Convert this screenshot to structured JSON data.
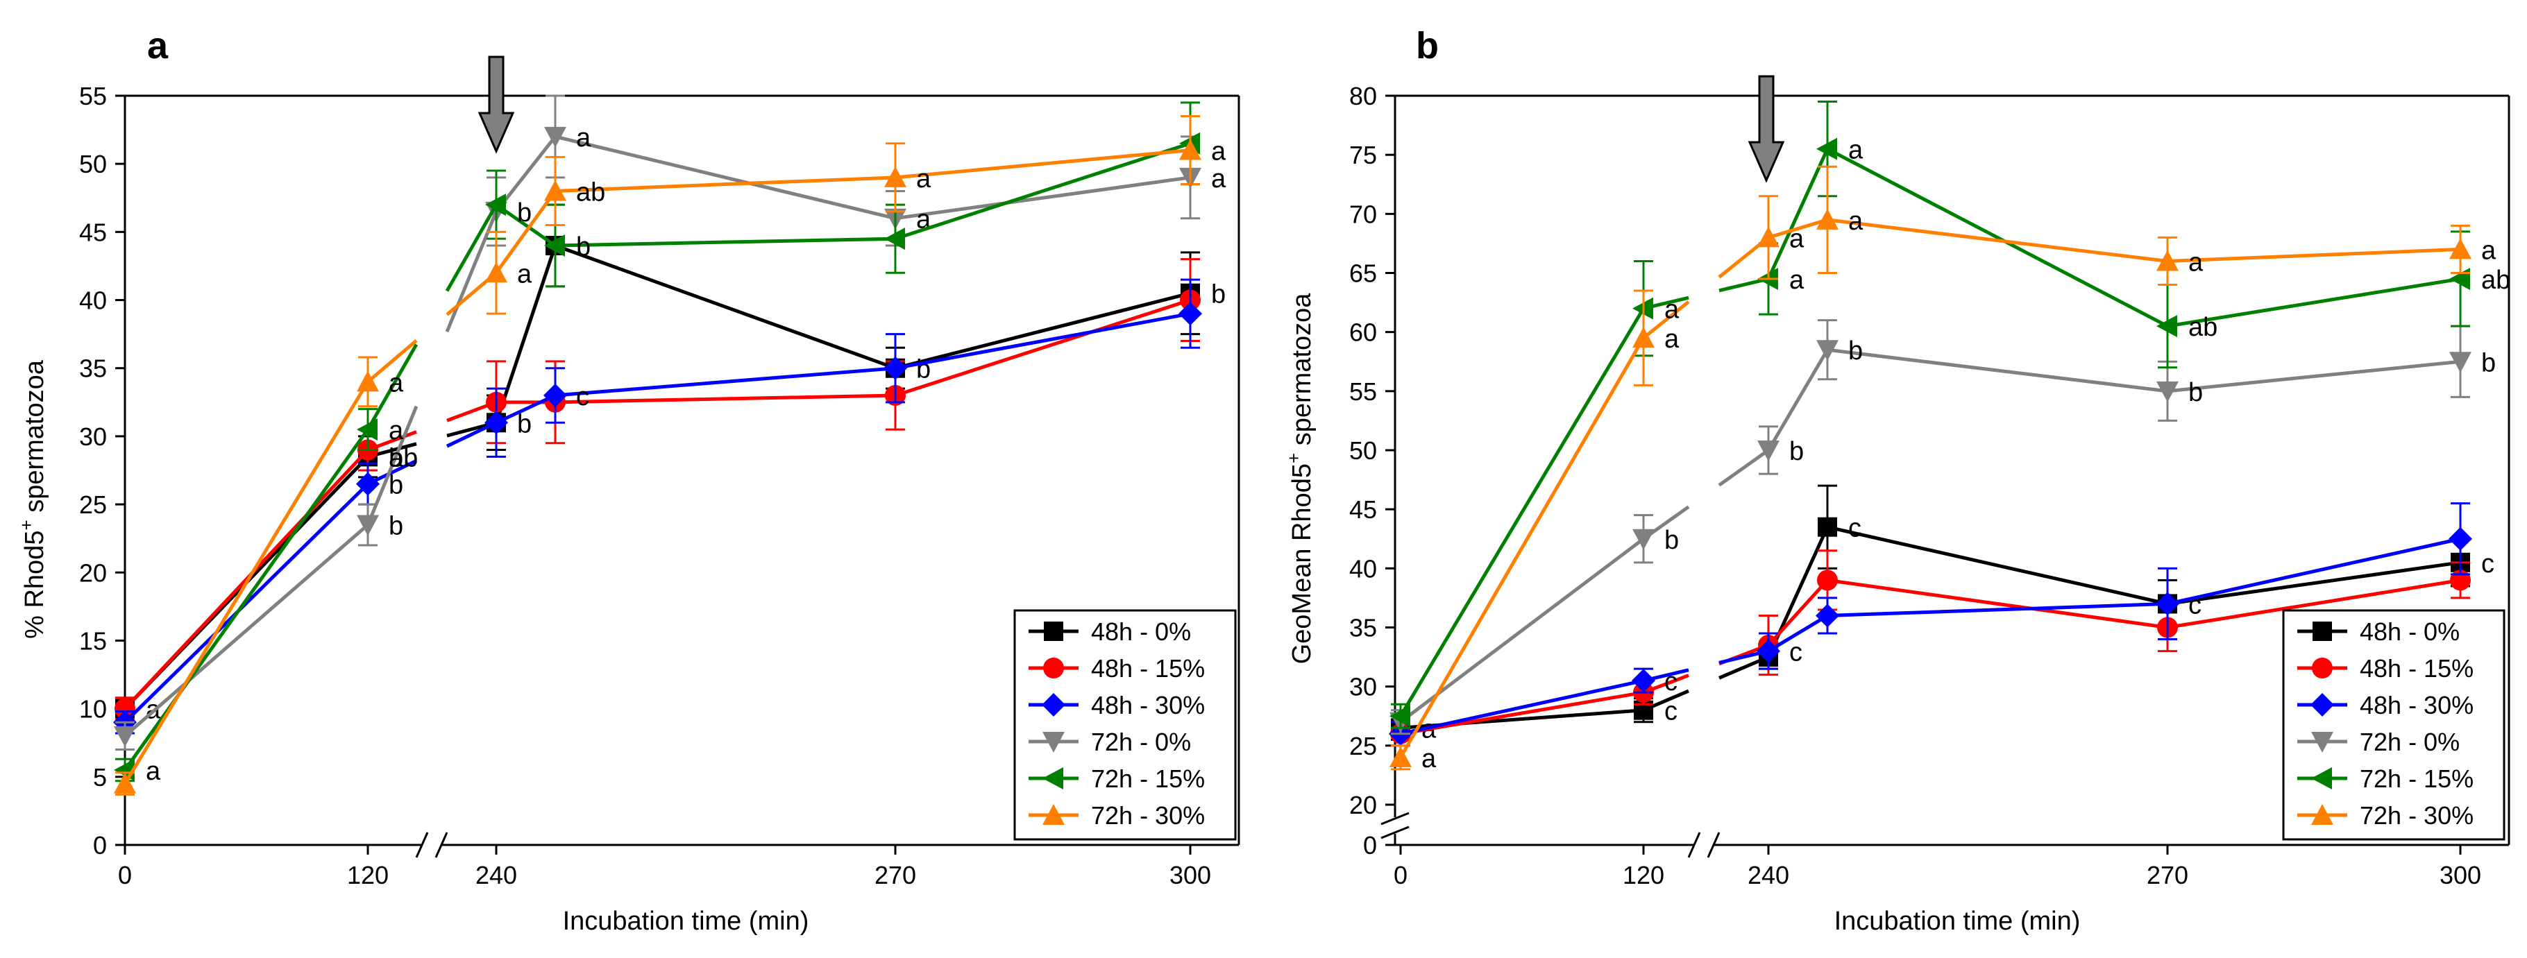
{
  "chart_data": [
    {
      "panel_label": "a",
      "type": "line",
      "title": "",
      "xlabel": "Incubation time (min)",
      "ylabel_parts": [
        "% Rhod5",
        "+",
        " spermatozoa"
      ],
      "ylim": [
        0,
        55
      ],
      "yticks": [
        "0",
        "5",
        "10",
        "15",
        "20",
        "25",
        "30",
        "35",
        "40",
        "45",
        "50",
        "55"
      ],
      "xticks": [
        "0",
        "120",
        "240",
        "270",
        "300"
      ],
      "x_axis_break": "between 120 and 240",
      "annotation": "arrow at x = 240",
      "legend_position": "bottom-right",
      "series": [
        {
          "name": "48h - 0%",
          "color": "#000000",
          "marker": "square",
          "values": [
            10.0,
            28.5,
            31.0,
            44.0,
            35.0,
            40.5
          ],
          "errors": [
            0.8,
            1.5,
            2.0,
            3.0,
            1.5,
            3.0
          ],
          "labels": [
            "a",
            "b",
            "b",
            "",
            "b",
            "b"
          ]
        },
        {
          "name": "48h - 15%",
          "color": "#ff0000",
          "marker": "circle",
          "values": [
            10.0,
            29.0,
            32.5,
            32.5,
            33.0,
            40.0
          ],
          "errors": [
            0.8,
            1.5,
            3.0,
            3.0,
            2.5,
            3.0
          ],
          "labels": [
            "",
            "",
            "",
            "",
            "",
            ""
          ]
        },
        {
          "name": "48h - 30%",
          "color": "#0000ff",
          "marker": "diamond",
          "values": [
            9.0,
            26.5,
            31.0,
            33.0,
            35.0,
            39.0
          ],
          "errors": [
            0.8,
            1.5,
            2.5,
            2.0,
            2.5,
            2.5
          ],
          "labels": [
            "",
            "b",
            "",
            "c",
            "",
            ""
          ]
        },
        {
          "name": "72h - 0%",
          "color": "#808080",
          "marker": "triangle-down",
          "values": [
            8.0,
            23.5,
            46.5,
            52.0,
            46.0,
            49.0
          ],
          "errors": [
            1.0,
            1.5,
            2.5,
            3.0,
            2.0,
            3.0
          ],
          "labels": [
            "",
            "b",
            "",
            "a",
            "a",
            "a"
          ]
        },
        {
          "name": "72h - 15%",
          "color": "#008000",
          "marker": "triangle-left",
          "values": [
            5.5,
            30.5,
            47.0,
            44.0,
            44.5,
            51.5
          ],
          "errors": [
            0.8,
            1.5,
            2.5,
            3.0,
            2.5,
            3.0
          ],
          "labels": [
            "a",
            "a",
            "",
            "b",
            "",
            ""
          ]
        },
        {
          "name": "72h - 30%",
          "color": "#ff8000",
          "marker": "triangle-up",
          "values": [
            4.5,
            34.0,
            42.0,
            48.0,
            49.0,
            51.0
          ],
          "errors": [
            0.8,
            1.8,
            3.0,
            2.5,
            2.5,
            2.5
          ],
          "labels": [
            "",
            "a",
            "a",
            "ab",
            "a",
            "a"
          ]
        }
      ],
      "extra_labels": [
        {
          "text": "ab",
          "near_series": 0,
          "point": 1
        },
        {
          "text": "b",
          "near_series": 3,
          "point": 2
        }
      ]
    },
    {
      "panel_label": "b",
      "type": "line",
      "title": "",
      "xlabel": "Incubation time (min)",
      "ylabel_parts": [
        "GeoMean Rhod5",
        "+",
        " spermatozoa"
      ],
      "ylim": [
        20,
        80
      ],
      "yticks": [
        "0",
        "20",
        "25",
        "30",
        "35",
        "40",
        "45",
        "50",
        "55",
        "60",
        "65",
        "70",
        "75",
        "80"
      ],
      "xticks": [
        "0",
        "120",
        "240",
        "270",
        "300"
      ],
      "y_axis_break": "between 0 and 20",
      "x_axis_break": "between 120 and 240",
      "annotation": "arrow at x = 240",
      "legend_position": "bottom-right",
      "series": [
        {
          "name": "48h - 0%",
          "color": "#000000",
          "marker": "square",
          "values": [
            26.5,
            28.0,
            32.5,
            43.5,
            37.0,
            40.5
          ],
          "errors": [
            1.0,
            1.0,
            1.0,
            3.5,
            2.0,
            2.0
          ],
          "labels": [
            "a",
            "c",
            "",
            "c",
            "c",
            "c"
          ]
        },
        {
          "name": "48h - 15%",
          "color": "#ff0000",
          "marker": "circle",
          "values": [
            26.0,
            29.5,
            33.5,
            39.0,
            35.0,
            39.0
          ],
          "errors": [
            1.0,
            1.0,
            2.5,
            2.5,
            2.0,
            1.5
          ],
          "labels": [
            "",
            "",
            "",
            "",
            "",
            ""
          ]
        },
        {
          "name": "48h - 30%",
          "color": "#0000ff",
          "marker": "diamond",
          "values": [
            26.0,
            30.5,
            33.0,
            36.0,
            37.0,
            42.5
          ],
          "errors": [
            1.0,
            1.0,
            1.5,
            1.5,
            3.0,
            3.0
          ],
          "labels": [
            "",
            "c",
            "c",
            "",
            "",
            ""
          ]
        },
        {
          "name": "72h - 0%",
          "color": "#808080",
          "marker": "triangle-down",
          "values": [
            27.0,
            42.5,
            50.0,
            58.5,
            55.0,
            57.5
          ],
          "errors": [
            1.0,
            2.0,
            2.0,
            2.5,
            2.5,
            3.0
          ],
          "labels": [
            "",
            "b",
            "b",
            "b",
            "b",
            "b"
          ]
        },
        {
          "name": "72h - 15%",
          "color": "#008000",
          "marker": "triangle-left",
          "values": [
            27.5,
            62.0,
            64.5,
            75.5,
            60.5,
            64.5
          ],
          "errors": [
            1.0,
            4.0,
            3.0,
            4.0,
            3.5,
            4.0
          ],
          "labels": [
            "",
            "",
            "",
            "",
            "ab",
            "ab"
          ]
        },
        {
          "name": "72h - 30%",
          "color": "#ff8000",
          "marker": "triangle-up",
          "values": [
            24.0,
            59.5,
            68.0,
            69.5,
            66.0,
            67.0
          ],
          "errors": [
            1.0,
            4.0,
            3.5,
            4.5,
            2.0,
            2.0
          ],
          "labels": [
            "a",
            "a",
            "a",
            "a",
            "a",
            "a"
          ]
        }
      ],
      "extra_labels": [
        {
          "text": "a",
          "near_series": 4,
          "point": 1
        },
        {
          "text": "a",
          "near_series": 4,
          "point": 2
        },
        {
          "text": "a",
          "near_series": 4,
          "point": 3
        }
      ]
    }
  ]
}
